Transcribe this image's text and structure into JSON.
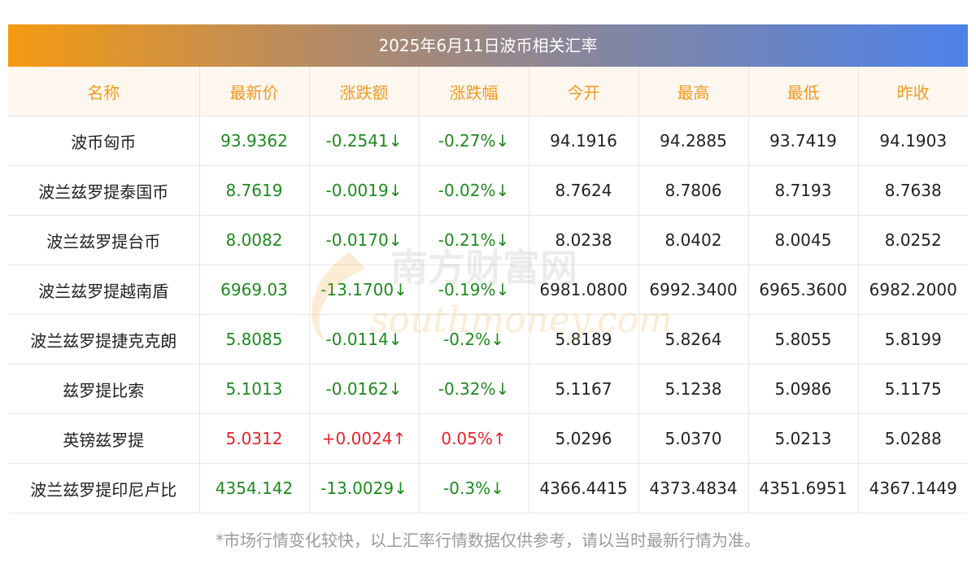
{
  "title": "2025年6月11日波币相关汇率",
  "colors": {
    "header_text": "#f39a1e",
    "up": "#e8232a",
    "down": "#1e8a1e",
    "title_gradient_start": "#f59a11",
    "title_gradient_end": "#4d82ea"
  },
  "headers": [
    "名称",
    "最新价",
    "涨跌额",
    "涨跌幅",
    "今开",
    "最高",
    "最低",
    "昨收"
  ],
  "rows": [
    {
      "name": "波币匈币",
      "latest": "93.9362",
      "change": "-0.2541↓",
      "pct": "-0.27%↓",
      "open": "94.1916",
      "high": "94.2885",
      "low": "93.7419",
      "prev": "94.1903",
      "dir": "down"
    },
    {
      "name": "波兰兹罗提泰国币",
      "latest": "8.7619",
      "change": "-0.0019↓",
      "pct": "-0.02%↓",
      "open": "8.7624",
      "high": "8.7806",
      "low": "8.7193",
      "prev": "8.7638",
      "dir": "down"
    },
    {
      "name": "波兰兹罗提台币",
      "latest": "8.0082",
      "change": "-0.0170↓",
      "pct": "-0.21%↓",
      "open": "8.0238",
      "high": "8.0402",
      "low": "8.0045",
      "prev": "8.0252",
      "dir": "down"
    },
    {
      "name": "波兰兹罗提越南盾",
      "latest": "6969.03",
      "change": "-13.1700↓",
      "pct": "-0.19%↓",
      "open": "6981.0800",
      "high": "6992.3400",
      "low": "6965.3600",
      "prev": "6982.2000",
      "dir": "down"
    },
    {
      "name": "波兰兹罗提捷克克朗",
      "latest": "5.8085",
      "change": "-0.0114↓",
      "pct": "-0.2%↓",
      "open": "5.8189",
      "high": "5.8264",
      "low": "5.8055",
      "prev": "5.8199",
      "dir": "down"
    },
    {
      "name": "兹罗提比索",
      "latest": "5.1013",
      "change": "-0.0162↓",
      "pct": "-0.32%↓",
      "open": "5.1167",
      "high": "5.1238",
      "low": "5.0986",
      "prev": "5.1175",
      "dir": "down"
    },
    {
      "name": "英镑兹罗提",
      "latest": "5.0312",
      "change": "+0.0024↑",
      "pct": "0.05%↑",
      "open": "5.0296",
      "high": "5.0370",
      "low": "5.0213",
      "prev": "5.0288",
      "dir": "up"
    },
    {
      "name": "波兰兹罗提印尼卢比",
      "latest": "4354.142",
      "change": "-13.0029↓",
      "pct": "-0.3%↓",
      "open": "4366.4415",
      "high": "4373.4834",
      "low": "4351.6951",
      "prev": "4367.1449",
      "dir": "down"
    }
  ],
  "watermark": {
    "cn": "南方财富网",
    "en": "southmoney.com"
  },
  "footer": "*市场行情变化较快，以上汇率行情数据仅供参考，请以当时最新行情为准。"
}
